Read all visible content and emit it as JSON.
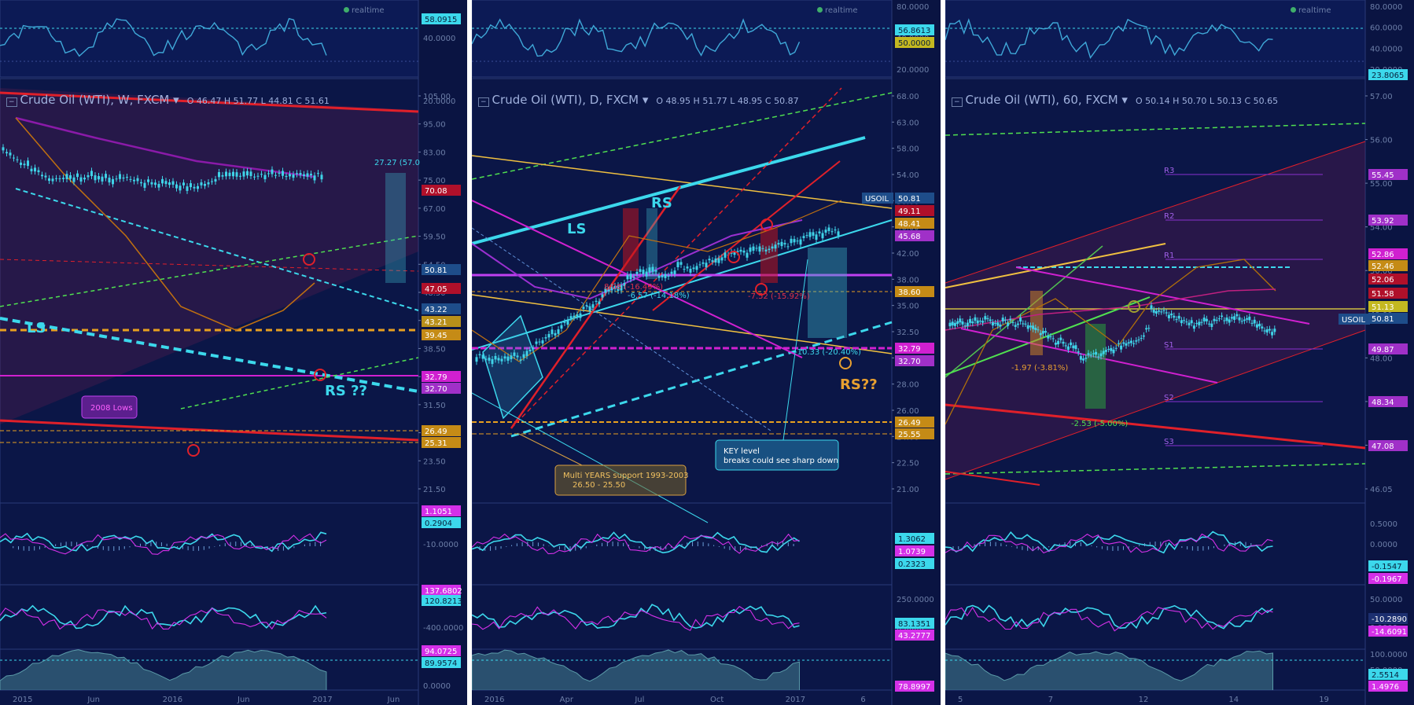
{
  "panels": [
    {
      "id": "weekly",
      "symbol": "Crude Oil (WTI)",
      "interval": "W",
      "exchange": "FXCM",
      "ohlc": {
        "o": "46.47",
        "h": "51.77",
        "l": "44.81",
        "c": "51.61"
      },
      "realtime_label": "realtime",
      "x_ticks": [
        "2015",
        "Jun",
        "2016",
        "Jun",
        "2017",
        "Jun"
      ],
      "price_ticks": [
        "105.00",
        "95.00",
        "83.00",
        "75.00",
        "67.00",
        "59.50",
        "54.50",
        "48.50",
        "43.50",
        "38.50",
        "34.50",
        "31.50",
        "28.50",
        "23.50",
        "21.50"
      ],
      "rsi_ticks": [
        "40.0000",
        "20.0000"
      ],
      "macd_ticks": [
        "-5.0000",
        "-10.0000"
      ],
      "cci_ticks": [
        "0.0000",
        "-400.0000"
      ],
      "adx_ticks": [
        "0.0000"
      ],
      "annotations": {
        "ls": "LS",
        "rs": "RS ??",
        "lows_2008": "2008 Lows",
        "measure": "27.27 (57.0"
      },
      "price_flags": [
        {
          "v": "70.08",
          "c": "#b0102a"
        },
        {
          "v": "50.81",
          "c": "#1e4d8a"
        },
        {
          "v": "47.05",
          "c": "#b0102a"
        },
        {
          "v": "43.22",
          "c": "#1e4d8a"
        },
        {
          "v": "43.21",
          "c": "#b8901a"
        },
        {
          "v": "39.45",
          "c": "#c58b16"
        },
        {
          "v": "32.79",
          "c": "#d020d0"
        },
        {
          "v": "32.70",
          "c": "#a030c8"
        },
        {
          "v": "26.49",
          "c": "#c58b16"
        },
        {
          "v": "25.31",
          "c": "#c58b16"
        }
      ],
      "ind_flags": [
        {
          "v": "58.0915",
          "c": "#3cd8ec"
        },
        {
          "v": "1.1051",
          "c": "#d430e8"
        },
        {
          "v": "0.2904",
          "c": "#3cd8ec"
        },
        {
          "v": "137.6802",
          "c": "#d430e8"
        },
        {
          "v": "120.8213",
          "c": "#3cd8ec"
        },
        {
          "v": "94.0725",
          "c": "#d430e8"
        },
        {
          "v": "89.9574",
          "c": "#3cd8ec"
        }
      ]
    },
    {
      "id": "daily",
      "symbol": "Crude Oil (WTI)",
      "interval": "D",
      "exchange": "FXCM",
      "ohlc": {
        "o": "48.95",
        "h": "51.77",
        "l": "48.95",
        "c": "50.87"
      },
      "realtime_label": "realtime",
      "x_ticks": [
        "2016",
        "Apr",
        "Jul",
        "Oct",
        "2017",
        "6"
      ],
      "price_ticks": [
        "68.00",
        "63.00",
        "58.00",
        "54.00",
        "50.00",
        "46.00",
        "42.00",
        "38.00",
        "35.00",
        "32.50",
        "30.00",
        "28.00",
        "26.00",
        "24.00",
        "22.50",
        "21.00"
      ],
      "rsi_ticks": [
        "80.0000",
        "40.0000",
        "20.0000"
      ],
      "cci_ticks": [
        "250.0000",
        "0.0000"
      ],
      "adx_ticks": [
        "0.0000"
      ],
      "annotations": {
        "ls": "LS",
        "rs": "RS",
        "rs2": "RS??",
        "pct1": "8.08 (-16.49%)",
        "pct2": "-6.57 (-14.18%)",
        "pct3": "-7.52 (-15.92%)",
        "pct4": "-10.33 (-20.40%)",
        "multi_years": "Multi YEARS  support 1993-2003",
        "multi_years_range": "26.50 -  25.50",
        "key_level": "KEY level",
        "key_level2": "breaks could see sharp down",
        "usoil_tag": "USOIL"
      },
      "price_flags": [
        {
          "v": "50.81",
          "c": "#1e4d8a"
        },
        {
          "v": "49.11",
          "c": "#b0102a"
        },
        {
          "v": "48.41",
          "c": "#c58b16"
        },
        {
          "v": "45.68",
          "c": "#a030c8"
        },
        {
          "v": "38.60",
          "c": "#c58b16"
        },
        {
          "v": "32.79",
          "c": "#d020d0"
        },
        {
          "v": "32.70",
          "c": "#a030c8"
        },
        {
          "v": "26.49",
          "c": "#c58b16"
        },
        {
          "v": "25.55",
          "c": "#c58b16"
        }
      ],
      "ind_flags": [
        {
          "v": "56.8613",
          "c": "#3cd8ec"
        },
        {
          "v": "50.0000",
          "c": "#c4b820"
        },
        {
          "v": "1.3062",
          "c": "#3cd8ec"
        },
        {
          "v": "1.0739",
          "c": "#d430e8"
        },
        {
          "v": "0.2323",
          "c": "#3cd8ec"
        },
        {
          "v": "83.1351",
          "c": "#3cd8ec"
        },
        {
          "v": "43.2777",
          "c": "#d430e8"
        },
        {
          "v": "78.8997",
          "c": "#d430e8"
        }
      ]
    },
    {
      "id": "hourly",
      "symbol": "Crude Oil (WTI)",
      "interval": "60",
      "exchange": "FXCM",
      "ohlc": {
        "o": "50.14",
        "h": "50.70",
        "l": "50.13",
        "c": "50.65"
      },
      "realtime_label": "realtime",
      "x_ticks": [
        "5",
        "7",
        "12",
        "14",
        "19"
      ],
      "price_ticks": [
        "57.00",
        "56.00",
        "55.00",
        "54.00",
        "50.00",
        "49.00",
        "48.00",
        "47.40",
        "46.70",
        "46.05"
      ],
      "rsi_ticks": [
        "80.0000",
        "60.0000",
        "40.0000",
        "20.0000"
      ],
      "macd_ticks": [
        "0.5000",
        "0.0000"
      ],
      "cci_ticks": [
        "50.0000",
        "0.0000"
      ],
      "adx_ticks": [
        "100.0000",
        "50.0000",
        "0.0000"
      ],
      "annotations": {
        "r3": "R3",
        "r2": "R2",
        "r1": "R1",
        "s1": "S1",
        "s2": "S2",
        "s3": "S3",
        "pct1": "-1.97 (-3.81%)",
        "pct2": "-2.53 (-5.00%)",
        "usoil_tag": "USOIL"
      },
      "price_flags": [
        {
          "v": "55.45",
          "c": "#a030c8"
        },
        {
          "v": "53.92",
          "c": "#a030c8"
        },
        {
          "v": "52.86",
          "c": "#d020d0"
        },
        {
          "v": "52.46",
          "c": "#c58b16"
        },
        {
          "v": "52.06",
          "c": "#b0102a"
        },
        {
          "v": "51.58",
          "c": "#b0102a"
        },
        {
          "v": "51.13",
          "c": "#c4b820"
        },
        {
          "v": "50.81",
          "c": "#1e4d8a"
        },
        {
          "v": "49.87",
          "c": "#a030c8"
        },
        {
          "v": "48.34",
          "c": "#a030c8"
        },
        {
          "v": "47.08",
          "c": "#a030c8"
        }
      ],
      "ind_flags": [
        {
          "v": "23.8065",
          "c": "#3cd8ec"
        },
        {
          "v": "-0.1547",
          "c": "#3cd8ec"
        },
        {
          "v": "-0.1967",
          "c": "#d430e8"
        },
        {
          "v": "-10.2890",
          "c": "#1c2f70"
        },
        {
          "v": "-14.6091",
          "c": "#d430e8"
        },
        {
          "v": "2.5514",
          "c": "#3cd8ec"
        },
        {
          "v": "1.4976",
          "c": "#d430e8"
        }
      ]
    }
  ]
}
